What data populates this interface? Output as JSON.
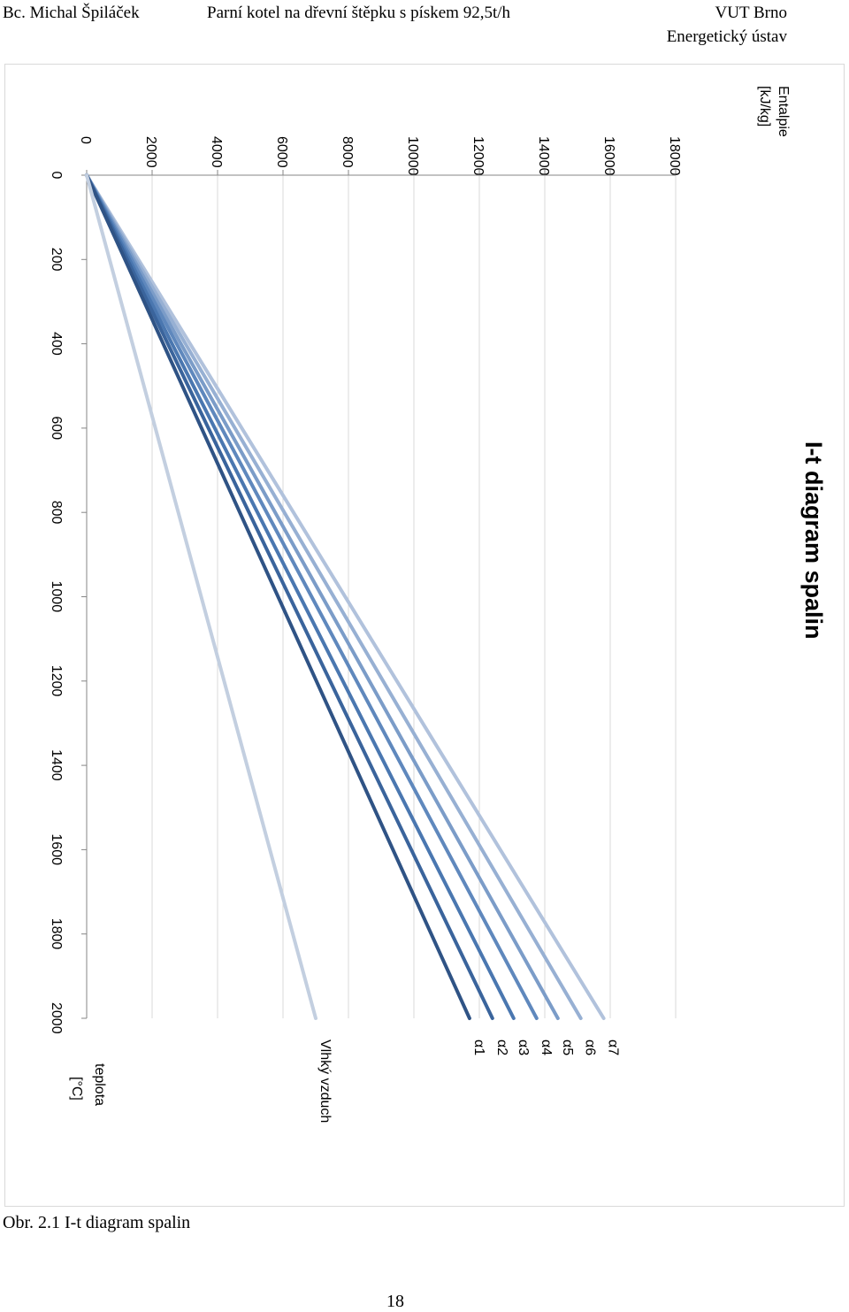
{
  "header": {
    "author": "Bc. Michal Špiláček",
    "thesis_title": "Parní kotel na dřevní štěpku s pískem 92,5t/h",
    "university": "VUT Brno",
    "institute": "Energetický ústav"
  },
  "caption": "Obr. 2.1  I-t diagram spalin",
  "page_number": "18",
  "colors": {
    "Vlhký vzduch": "#c3cfe0",
    "α1": "#2f5385",
    "α2": "#3a649c",
    "α3": "#4a77b0",
    "α4": "#5f88bd",
    "α5": "#7b9cc8",
    "α6": "#97b0d3",
    "α7": "#b1c2dc"
  },
  "chart_data": {
    "type": "line",
    "orientation": "rotated 90° clockwise",
    "title": "I-t diagram spalin",
    "xlabel_line1": "teplota",
    "xlabel_line2": "[°C]",
    "ylabel_line1": "Entalpie",
    "ylabel_line2": "[kJ/kg]",
    "xlim": [
      0,
      2000
    ],
    "ylim": [
      0,
      18000
    ],
    "x_ticks": [
      "0",
      "200",
      "400",
      "600",
      "800",
      "1000",
      "1200",
      "1400",
      "1600",
      "1800",
      "2000"
    ],
    "y_ticks": [
      "0",
      "2000",
      "4000",
      "6000",
      "8000",
      "10000",
      "12000",
      "14000",
      "16000",
      "18000"
    ],
    "grid": "horizontal gridlines at y ticks",
    "x": [
      0,
      2000
    ],
    "series": [
      {
        "name": "α7",
        "values": [
          0,
          15800
        ]
      },
      {
        "name": "α6",
        "values": [
          0,
          15100
        ]
      },
      {
        "name": "α5",
        "values": [
          0,
          14400
        ]
      },
      {
        "name": "α4",
        "values": [
          0,
          13750
        ]
      },
      {
        "name": "α3",
        "values": [
          0,
          13050
        ]
      },
      {
        "name": "α2",
        "values": [
          0,
          12400
        ]
      },
      {
        "name": "α1",
        "values": [
          0,
          11700
        ]
      },
      {
        "name": "Vlhký vzduch",
        "values": [
          0,
          7000
        ]
      }
    ]
  }
}
